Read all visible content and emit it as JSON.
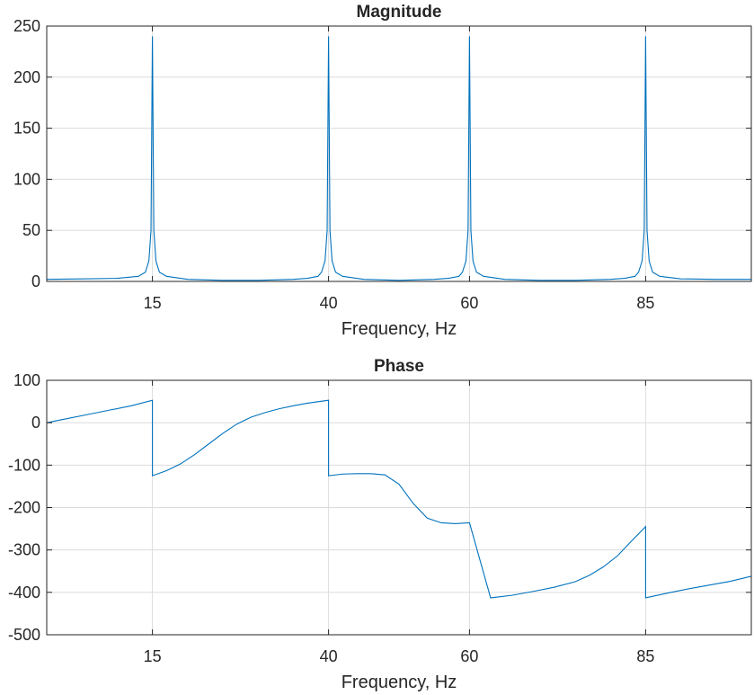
{
  "chart_data": [
    {
      "type": "line",
      "title": "Magnitude",
      "xlabel": "Frequency, Hz",
      "ylabel": "",
      "xlim": [
        0,
        100
      ],
      "ylim": [
        0,
        250
      ],
      "xticks": [
        15,
        40,
        60,
        85
      ],
      "xtick_labels": [
        "15",
        "40",
        "60",
        "85"
      ],
      "yticks": [
        0,
        50,
        100,
        150,
        200,
        250
      ],
      "ytick_labels": [
        "0",
        "50",
        "100",
        "150",
        "200",
        "250"
      ],
      "grid": true,
      "color": "#0072BD",
      "series": [
        {
          "x": [
            0,
            5,
            10,
            13,
            14,
            14.5,
            14.8,
            15,
            15.2,
            15.5,
            16,
            17,
            20,
            25,
            30,
            35,
            37,
            38.5,
            39,
            39.5,
            39.8,
            40,
            40.2,
            40.5,
            41,
            42,
            45,
            50,
            55,
            57,
            58.5,
            59,
            59.5,
            59.8,
            60,
            60.2,
            60.5,
            61,
            62,
            65,
            70,
            75,
            80,
            82,
            83.5,
            84,
            84.5,
            84.8,
            85,
            85.2,
            85.5,
            86,
            87,
            90,
            95,
            100
          ],
          "y": [
            2,
            2.5,
            3,
            5,
            9,
            20,
            50,
            240,
            50,
            20,
            9,
            5,
            2,
            1,
            1,
            2,
            3,
            5,
            9,
            20,
            50,
            240,
            50,
            20,
            9,
            5,
            2,
            1,
            2,
            3,
            5,
            9,
            20,
            50,
            240,
            50,
            20,
            9,
            5,
            2,
            1,
            1,
            2,
            3,
            5,
            9,
            20,
            50,
            240,
            50,
            20,
            9,
            5,
            2.5,
            2,
            2
          ]
        }
      ]
    },
    {
      "type": "line",
      "title": "Phase",
      "xlabel": "Frequency, Hz",
      "ylabel": "",
      "xlim": [
        0,
        100
      ],
      "ylim": [
        -500,
        100
      ],
      "xticks": [
        15,
        40,
        60,
        85
      ],
      "xtick_labels": [
        "15",
        "40",
        "60",
        "85"
      ],
      "yticks": [
        100,
        0,
        -100,
        -200,
        -300,
        -400,
        -500
      ],
      "ytick_labels": [
        "100",
        "0",
        "-100",
        "-200",
        "-300",
        "-400",
        "-500"
      ],
      "grid": true,
      "color": "#0072BD",
      "series": [
        {
          "x": [
            0,
            3,
            6,
            9,
            12,
            15,
            15.001,
            17,
            19,
            21,
            23,
            25,
            27,
            29,
            31,
            33,
            35,
            37,
            40,
            40.001,
            42,
            44,
            46,
            48,
            50,
            52,
            54,
            56,
            58,
            60,
            60.001,
            63,
            66,
            69,
            72,
            75,
            77,
            79,
            81,
            83,
            85,
            85.001,
            88,
            91,
            94,
            97,
            100
          ],
          "y": [
            0,
            10,
            20,
            30,
            40,
            53,
            -125,
            -113,
            -97,
            -75,
            -50,
            -25,
            -3,
            13,
            24,
            33,
            40,
            46,
            53,
            -125,
            -121,
            -120,
            -120,
            -123,
            -145,
            -190,
            -225,
            -236,
            -238,
            -236,
            -236,
            -413,
            -407,
            -398,
            -388,
            -375,
            -360,
            -340,
            -314,
            -279,
            -245,
            -413,
            -402,
            -392,
            -383,
            -374,
            -362
          ]
        }
      ]
    }
  ]
}
